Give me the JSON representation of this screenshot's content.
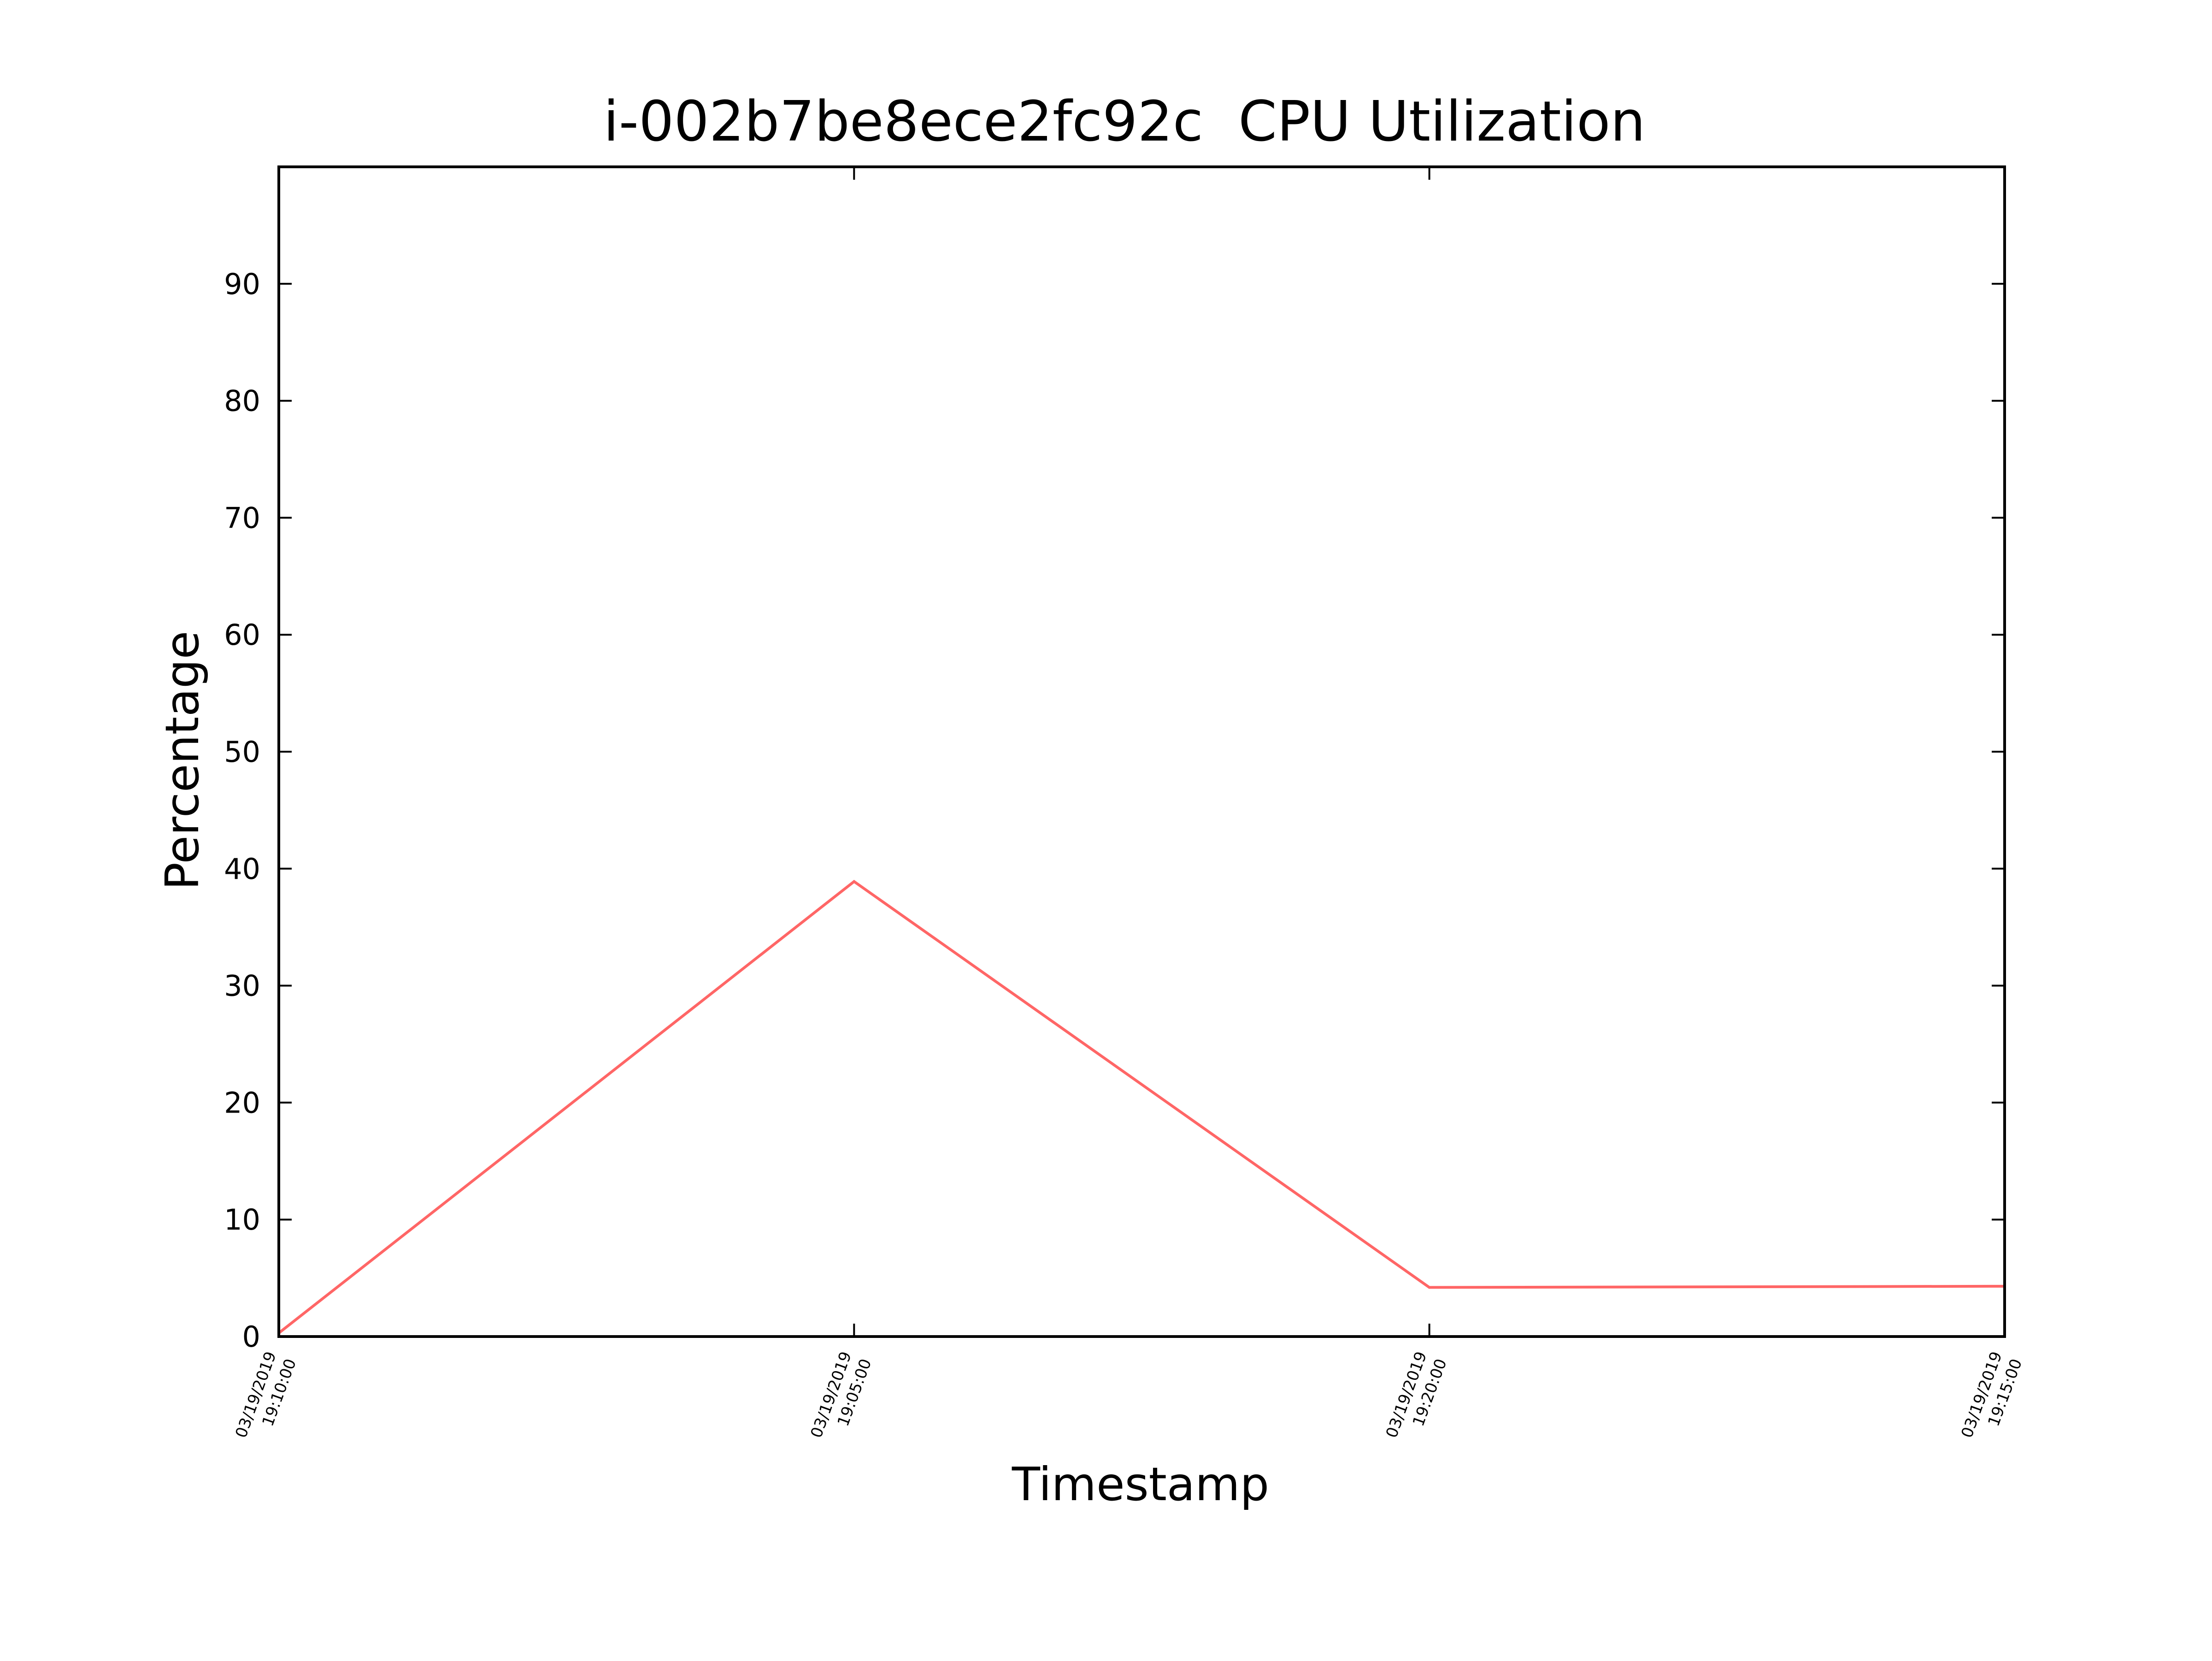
{
  "chart_data": {
    "type": "line",
    "title": "i-002b7be8ece2fc92c  CPU Utilization",
    "xlabel": "Timestamp",
    "ylabel": "Percentage",
    "categories": [
      [
        "03/19/2019",
        "19:10:00"
      ],
      [
        "03/19/2019",
        "19:05:00"
      ],
      [
        "03/19/2019",
        "19:20:00"
      ],
      [
        "03/19/2019",
        "19:15:00"
      ]
    ],
    "series": [
      {
        "values": [
          0.3,
          38.9,
          4.2,
          4.3
        ]
      }
    ],
    "ylim": [
      0,
      100
    ],
    "yticks": [
      0,
      10,
      20,
      30,
      40,
      50,
      60,
      70,
      80,
      90
    ],
    "grid": false,
    "legend": "none",
    "colors": {
      "line": "#ff6666",
      "axes": "#000000",
      "background": "#ffffff"
    }
  }
}
